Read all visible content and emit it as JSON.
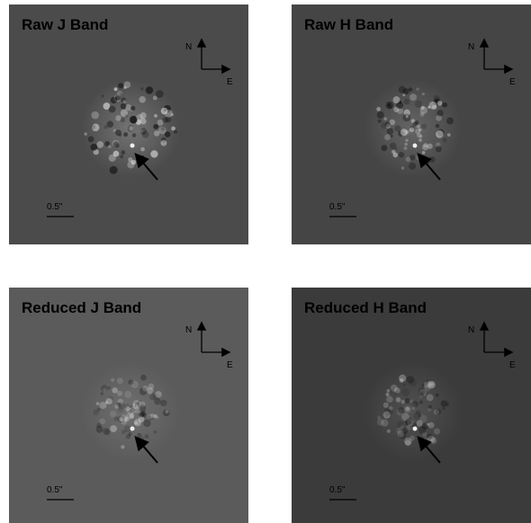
{
  "panels": [
    {
      "title": "Raw J Band",
      "north": "N",
      "east": "E",
      "scale": "0.5\""
    },
    {
      "title": "Raw H Band",
      "north": "N",
      "east": "E",
      "scale": "0.5\""
    },
    {
      "title": "Reduced J Band",
      "north": "N",
      "east": "E",
      "scale": "0.5\""
    },
    {
      "title": "Reduced H Band",
      "north": "N",
      "east": "E",
      "scale": "0.5\""
    }
  ]
}
